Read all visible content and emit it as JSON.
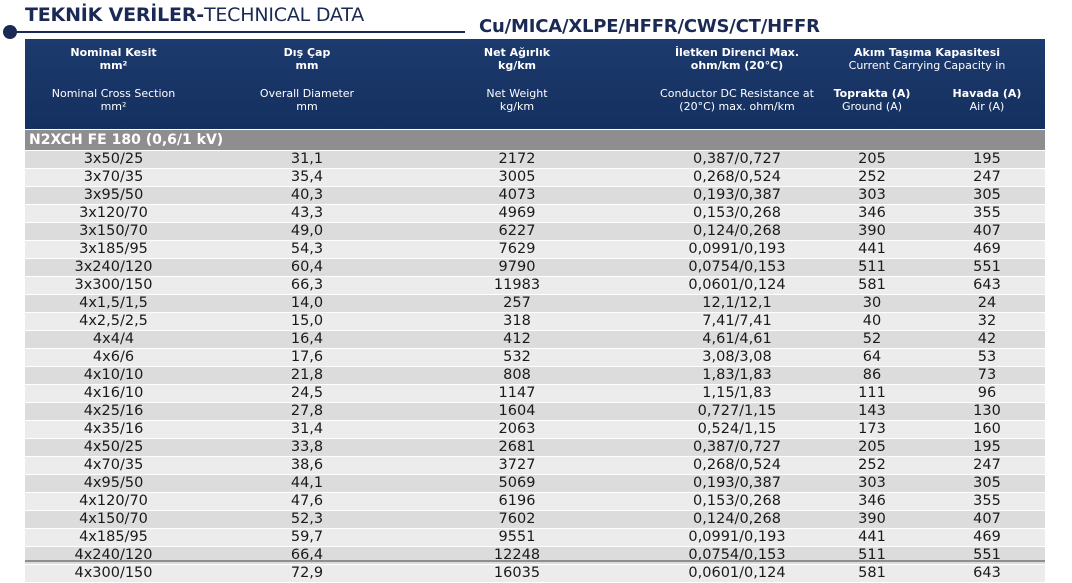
{
  "title": {
    "bold": "TEKNİK VERİLER-",
    "normal": "TECHNICAL DATA"
  },
  "subtitle": "Cu/MICA/XLPE/HFFR/CWS/CT/HFFR",
  "header": {
    "nominal": {
      "tr": "Nominal Kesit",
      "tr_unit": "mm²",
      "en": "Nominal Cross Section",
      "en_unit": "mm²"
    },
    "diameter": {
      "tr": "Dış Çap",
      "tr_unit": "mm",
      "en": "Overall Diameter",
      "en_unit": "mm"
    },
    "weight": {
      "tr": "Net Ağırlık",
      "tr_unit": "kg/km",
      "en": "Net Weight",
      "en_unit": "kg/km"
    },
    "resistance": {
      "tr": "İletken Direnci Max.",
      "tr_unit": "ohm/km (20°C)",
      "en": "Conductor DC Resistance at",
      "en_unit": "(20°C) max. ohm/km"
    },
    "capacity": {
      "tr": "Akım Taşıma Kapasitesi",
      "en": "Current Carrying Capacity in"
    },
    "ground": {
      "tr": "Toprakta (A)",
      "en": "Ground (A)"
    },
    "air": {
      "tr": "Havada (A)",
      "en": "Air (A)"
    }
  },
  "section": "N2XCH FE 180 (0,6/1 kV)",
  "rows": [
    [
      "3x50/25",
      "31,1",
      "2172",
      "0,387/0,727",
      "205",
      "195"
    ],
    [
      "3x70/35",
      "35,4",
      "3005",
      "0,268/0,524",
      "252",
      "247"
    ],
    [
      "3x95/50",
      "40,3",
      "4073",
      "0,193/0,387",
      "303",
      "305"
    ],
    [
      "3x120/70",
      "43,3",
      "4969",
      "0,153/0,268",
      "346",
      "355"
    ],
    [
      "3x150/70",
      "49,0",
      "6227",
      "0,124/0,268",
      "390",
      "407"
    ],
    [
      "3x185/95",
      "54,3",
      "7629",
      "0,0991/0,193",
      "441",
      "469"
    ],
    [
      "3x240/120",
      "60,4",
      "9790",
      "0,0754/0,153",
      "511",
      "551"
    ],
    [
      "3x300/150",
      "66,3",
      "11983",
      "0,0601/0,124",
      "581",
      "643"
    ],
    [
      "4x1,5/1,5",
      "14,0",
      "257",
      "12,1/12,1",
      "30",
      "24"
    ],
    [
      "4x2,5/2,5",
      "15,0",
      "318",
      "7,41/7,41",
      "40",
      "32"
    ],
    [
      "4x4/4",
      "16,4",
      "412",
      "4,61/4,61",
      "52",
      "42"
    ],
    [
      "4x6/6",
      "17,6",
      "532",
      "3,08/3,08",
      "64",
      "53"
    ],
    [
      "4x10/10",
      "21,8",
      "808",
      "1,83/1,83",
      "86",
      "73"
    ],
    [
      "4x16/10",
      "24,5",
      "1147",
      "1,15/1,83",
      "111",
      "96"
    ],
    [
      "4x25/16",
      "27,8",
      "1604",
      "0,727/1,15",
      "143",
      "130"
    ],
    [
      "4x35/16",
      "31,4",
      "2063",
      "0,524/1,15",
      "173",
      "160"
    ],
    [
      "4x50/25",
      "33,8",
      "2681",
      "0,387/0,727",
      "205",
      "195"
    ],
    [
      "4x70/35",
      "38,6",
      "3727",
      "0,268/0,524",
      "252",
      "247"
    ],
    [
      "4x95/50",
      "44,1",
      "5069",
      "0,193/0,387",
      "303",
      "305"
    ],
    [
      "4x120/70",
      "47,6",
      "6196",
      "0,153/0,268",
      "346",
      "355"
    ],
    [
      "4x150/70",
      "52,3",
      "7602",
      "0,124/0,268",
      "390",
      "407"
    ],
    [
      "4x185/95",
      "59,7",
      "9551",
      "0,0991/0,193",
      "441",
      "469"
    ],
    [
      "4x240/120",
      "66,4",
      "12248",
      "0,0754/0,153",
      "511",
      "551"
    ],
    [
      "4x300/150",
      "72,9",
      "16035",
      "0,0601/0,124",
      "581",
      "643"
    ]
  ]
}
